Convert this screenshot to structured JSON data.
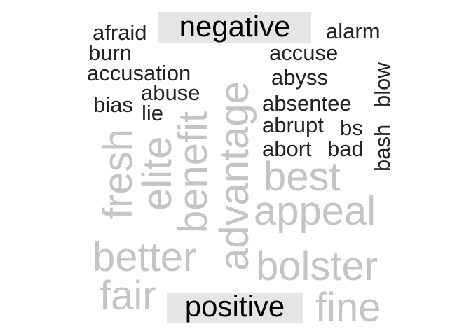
{
  "chart_data": {
    "type": "comparison_wordcloud",
    "groups": [
      {
        "name": "negative",
        "color": "#222222",
        "label_bg": "#e5e5e5",
        "words": [
          {
            "word": "afraid",
            "freq": 1
          },
          {
            "word": "alarm",
            "freq": 1
          },
          {
            "word": "burn",
            "freq": 1
          },
          {
            "word": "accuse",
            "freq": 1
          },
          {
            "word": "accusation",
            "freq": 1
          },
          {
            "word": "abyss",
            "freq": 1
          },
          {
            "word": "abuse",
            "freq": 1
          },
          {
            "word": "bias",
            "freq": 1
          },
          {
            "word": "lie",
            "freq": 1
          },
          {
            "word": "absentee",
            "freq": 1
          },
          {
            "word": "blow",
            "freq": 1
          },
          {
            "word": "abrupt",
            "freq": 1
          },
          {
            "word": "bs",
            "freq": 1
          },
          {
            "word": "bash",
            "freq": 1
          },
          {
            "word": "abort",
            "freq": 1
          },
          {
            "word": "bad",
            "freq": 1
          }
        ]
      },
      {
        "name": "positive",
        "color": "#c4c4c4",
        "label_bg": "#e5e5e5",
        "words": [
          {
            "word": "advantage",
            "freq": 4
          },
          {
            "word": "benefit",
            "freq": 3
          },
          {
            "word": "elite",
            "freq": 3
          },
          {
            "word": "fresh",
            "freq": 3
          },
          {
            "word": "best",
            "freq": 3
          },
          {
            "word": "appeal",
            "freq": 3
          },
          {
            "word": "better",
            "freq": 3
          },
          {
            "word": "bolster",
            "freq": 3
          },
          {
            "word": "fair",
            "freq": 3
          },
          {
            "word": "fine",
            "freq": 3
          }
        ]
      }
    ]
  }
}
